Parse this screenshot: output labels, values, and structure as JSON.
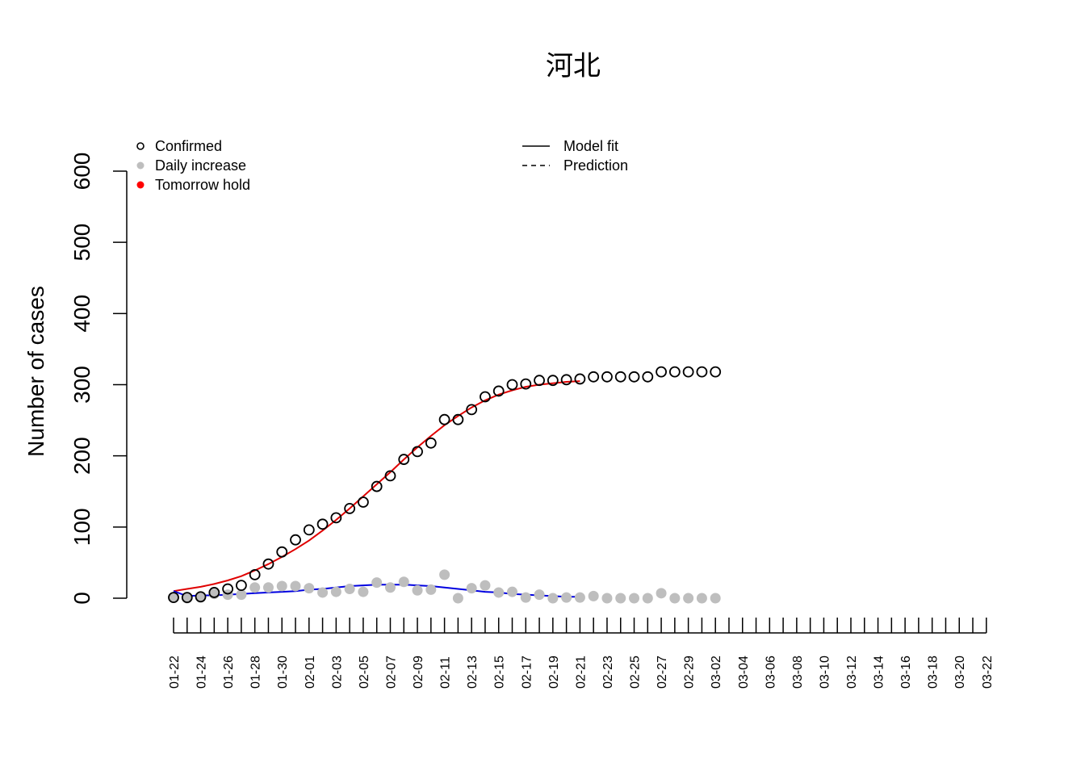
{
  "chart_data": {
    "type": "scatter",
    "title": "河北",
    "ylabel": "Number of cases",
    "xlabel": "",
    "ylim": [
      0,
      600
    ],
    "yticks": [
      0,
      100,
      200,
      300,
      400,
      500,
      600
    ],
    "x_range": [
      "01-22",
      "03-22"
    ],
    "tick_labels": [
      "01-22",
      "01-24",
      "01-26",
      "01-28",
      "01-30",
      "02-01",
      "02-03",
      "02-05",
      "02-07",
      "02-09",
      "02-11",
      "02-13",
      "02-15",
      "02-17",
      "02-19",
      "02-21",
      "02-23",
      "02-25",
      "02-27",
      "02-29",
      "03-02",
      "03-04",
      "03-06",
      "03-08",
      "03-10",
      "03-12",
      "03-14",
      "03-16",
      "03-18",
      "03-20",
      "03-22"
    ],
    "grid": false,
    "legend_left": {
      "placement": "top-left",
      "entries": [
        {
          "label": "Confirmed",
          "marker": "open-circle",
          "color": "#000000"
        },
        {
          "label": "Daily increase",
          "marker": "filled-circle",
          "color": "#bebebe"
        },
        {
          "label": "Tomorrow hold",
          "marker": "filled-circle",
          "color": "#ff0000"
        }
      ]
    },
    "legend_right": {
      "placement": "top-center",
      "entries": [
        {
          "label": "Model fit",
          "line": "solid",
          "color": "#000000"
        },
        {
          "label": "Prediction",
          "line": "dashed",
          "color": "#000000"
        }
      ]
    },
    "series": [
      {
        "key": "confirmed",
        "marker": "open-circle",
        "color": "#000000",
        "x": [
          "01-22",
          "01-23",
          "01-24",
          "01-25",
          "01-26",
          "01-27",
          "01-28",
          "01-29",
          "01-30",
          "01-31",
          "02-01",
          "02-02",
          "02-03",
          "02-04",
          "02-05",
          "02-06",
          "02-07",
          "02-08",
          "02-09",
          "02-10",
          "02-11",
          "02-12",
          "02-13",
          "02-14",
          "02-15",
          "02-16",
          "02-17",
          "02-18",
          "02-19",
          "02-20",
          "02-21",
          "02-22",
          "02-23",
          "02-24",
          "02-25",
          "02-26",
          "02-27",
          "02-28",
          "02-29",
          "03-01",
          "03-02"
        ],
        "values": [
          1,
          1,
          2,
          8,
          13,
          18,
          33,
          48,
          65,
          82,
          96,
          104,
          113,
          126,
          135,
          157,
          172,
          195,
          206,
          218,
          251,
          251,
          265,
          283,
          291,
          300,
          301,
          306,
          306,
          307,
          308,
          311,
          311,
          311,
          311,
          311,
          318,
          318,
          318,
          318,
          318
        ]
      },
      {
        "key": "daily_increase",
        "marker": "filled-circle",
        "color": "#bebebe",
        "x": [
          "01-22",
          "01-23",
          "01-24",
          "01-25",
          "01-26",
          "01-27",
          "01-28",
          "01-29",
          "01-30",
          "01-31",
          "02-01",
          "02-02",
          "02-03",
          "02-04",
          "02-05",
          "02-06",
          "02-07",
          "02-08",
          "02-09",
          "02-10",
          "02-11",
          "02-12",
          "02-13",
          "02-14",
          "02-15",
          "02-16",
          "02-17",
          "02-18",
          "02-19",
          "02-20",
          "02-21",
          "02-22",
          "02-23",
          "02-24",
          "02-25",
          "02-26",
          "02-27",
          "02-28",
          "02-29",
          "03-01",
          "03-02"
        ],
        "values": [
          1,
          0,
          1,
          6,
          5,
          5,
          15,
          15,
          17,
          17,
          14,
          8,
          9,
          13,
          9,
          22,
          15,
          23,
          11,
          12,
          33,
          0,
          14,
          18,
          8,
          9,
          1,
          5,
          0,
          1,
          1,
          3,
          0,
          0,
          0,
          0,
          7,
          0,
          0,
          0,
          0
        ]
      },
      {
        "key": "model_fit_confirmed",
        "line": "solid",
        "color": "#e00000",
        "x": [
          "01-22",
          "01-23",
          "01-24",
          "01-25",
          "01-26",
          "01-27",
          "01-28",
          "01-29",
          "01-30",
          "01-31",
          "02-01",
          "02-02",
          "02-03",
          "02-04",
          "02-05",
          "02-06",
          "02-07",
          "02-08",
          "02-09",
          "02-10",
          "02-11",
          "02-12",
          "02-13",
          "02-14",
          "02-15",
          "02-16",
          "02-17",
          "02-18",
          "02-19",
          "02-20",
          "02-21"
        ],
        "values": [
          10,
          13,
          16,
          20,
          25,
          31,
          39,
          48,
          58,
          69,
          81,
          95,
          110,
          126,
          143,
          160,
          177,
          195,
          212,
          228,
          243,
          256,
          268,
          278,
          286,
          292,
          297,
          300,
          302,
          304,
          305
        ]
      },
      {
        "key": "model_fit_daily",
        "line": "solid",
        "color": "#0000e0",
        "x": [
          "01-22",
          "01-23",
          "01-24",
          "01-25",
          "01-26",
          "01-27",
          "01-28",
          "01-29",
          "01-30",
          "01-31",
          "02-01",
          "02-02",
          "02-03",
          "02-04",
          "02-05",
          "02-06",
          "02-07",
          "02-08",
          "02-09",
          "02-10",
          "02-11",
          "02-12",
          "02-13",
          "02-14",
          "02-15",
          "02-16",
          "02-17",
          "02-18",
          "02-19",
          "02-20",
          "02-21"
        ],
        "values": [
          10,
          3,
          4,
          4,
          5,
          6,
          7,
          8,
          9,
          10,
          12,
          13,
          15,
          17,
          18,
          19,
          19,
          19,
          18,
          17,
          15,
          13,
          11,
          9,
          8,
          6,
          5,
          4,
          3,
          2,
          2
        ]
      }
    ]
  }
}
